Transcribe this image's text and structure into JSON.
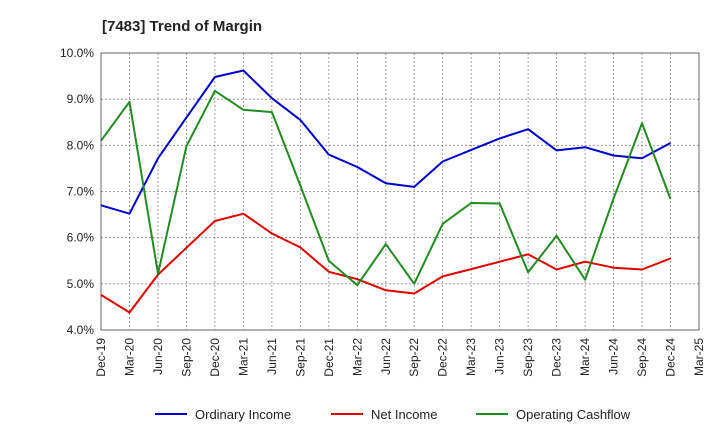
{
  "chart_data": {
    "type": "line",
    "title": "[7483]  Trend of Margin",
    "xlabel": "",
    "ylabel": "",
    "ylim": [
      4.0,
      10.0
    ],
    "yticks": [
      "4.0%",
      "5.0%",
      "6.0%",
      "7.0%",
      "8.0%",
      "9.0%",
      "10.0%"
    ],
    "categories": [
      "Dec-19",
      "Mar-20",
      "Jun-20",
      "Sep-20",
      "Dec-20",
      "Mar-21",
      "Jun-21",
      "Sep-21",
      "Dec-21",
      "Mar-22",
      "Jun-22",
      "Sep-22",
      "Dec-22",
      "Mar-23",
      "Jun-23",
      "Sep-23",
      "Dec-23",
      "Mar-24",
      "Jun-24",
      "Sep-24",
      "Dec-24",
      "Mar-25"
    ],
    "grid": true,
    "legend_position": "bottom",
    "series": [
      {
        "name": "Ordinary Income",
        "color": "#0000cc",
        "values": [
          6.7,
          6.52,
          7.72,
          8.6,
          9.48,
          9.62,
          9.02,
          8.55,
          7.8,
          7.53,
          7.18,
          7.1,
          7.65,
          7.9,
          8.15,
          8.35,
          7.89,
          7.96,
          7.78,
          7.72,
          8.05,
          null
        ]
      },
      {
        "name": "Net Income",
        "color": "#e00000",
        "values": [
          4.76,
          4.38,
          5.2,
          5.78,
          6.36,
          6.52,
          6.09,
          5.79,
          5.26,
          5.1,
          4.86,
          4.79,
          5.16,
          5.32,
          5.48,
          5.64,
          5.31,
          5.48,
          5.35,
          5.31,
          5.55,
          null
        ]
      },
      {
        "name": "Operating Cashflow",
        "color": "#228b22",
        "values": [
          8.1,
          8.94,
          5.22,
          7.98,
          9.18,
          8.77,
          8.72,
          7.13,
          5.5,
          4.97,
          5.86,
          5.0,
          6.3,
          6.75,
          6.74,
          5.25,
          6.04,
          5.09,
          6.85,
          8.48,
          6.84,
          null
        ]
      }
    ]
  }
}
